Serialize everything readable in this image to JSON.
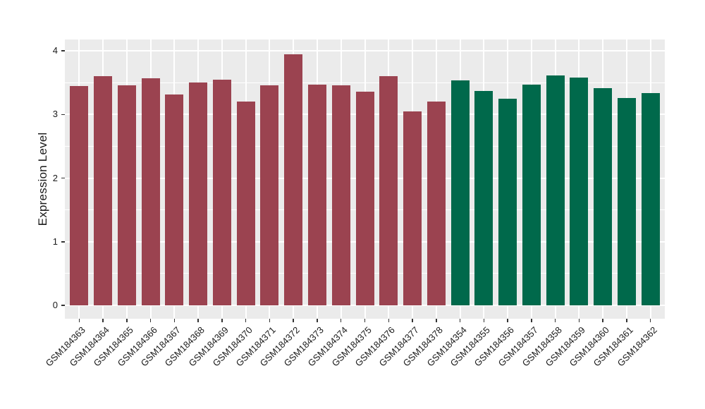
{
  "figure": {
    "background_color": "#FFFFFF",
    "panel_background_color": "#EBEBEB",
    "grid_color": "#FFFFFF",
    "axis_text_color": "#1A1A1A",
    "tick_mark_color": "#333333",
    "legend": "none",
    "title": ""
  },
  "chart_data": {
    "type": "bar",
    "title": "",
    "xlabel": "",
    "ylabel": "Expression Level",
    "ylim": [
      -0.21,
      4.18
    ],
    "yticks": [
      0,
      1,
      2,
      3,
      4
    ],
    "minor_yticks": [
      0.5,
      1.5,
      2.5,
      3.5
    ],
    "grid": "white major+minor horizontal lines, white vertical line at each category, on gray panel",
    "legend_position": "none",
    "categories": [
      "GSM184363",
      "GSM184364",
      "GSM184365",
      "GSM184366",
      "GSM184367",
      "GSM184368",
      "GSM184369",
      "GSM184370",
      "GSM184371",
      "GSM184372",
      "GSM184373",
      "GSM184374",
      "GSM184375",
      "GSM184376",
      "GSM184377",
      "GSM184378",
      "GSM184354",
      "GSM184355",
      "GSM184356",
      "GSM184357",
      "GSM184358",
      "GSM184359",
      "GSM184360",
      "GSM184361",
      "GSM184362"
    ],
    "values": [
      3.45,
      3.6,
      3.46,
      3.57,
      3.31,
      3.5,
      3.55,
      3.2,
      3.46,
      3.95,
      3.47,
      3.46,
      3.36,
      3.6,
      3.05,
      3.2,
      3.53,
      3.37,
      3.25,
      3.47,
      3.61,
      3.58,
      3.41,
      3.26,
      3.34
    ],
    "groups": [
      "group1",
      "group1",
      "group1",
      "group1",
      "group1",
      "group1",
      "group1",
      "group1",
      "group1",
      "group1",
      "group1",
      "group1",
      "group1",
      "group1",
      "group1",
      "group1",
      "group2",
      "group2",
      "group2",
      "group2",
      "group2",
      "group2",
      "group2",
      "group2",
      "group2"
    ],
    "group_colors": {
      "group1": "#9B4350",
      "group2": "#00694B"
    }
  }
}
